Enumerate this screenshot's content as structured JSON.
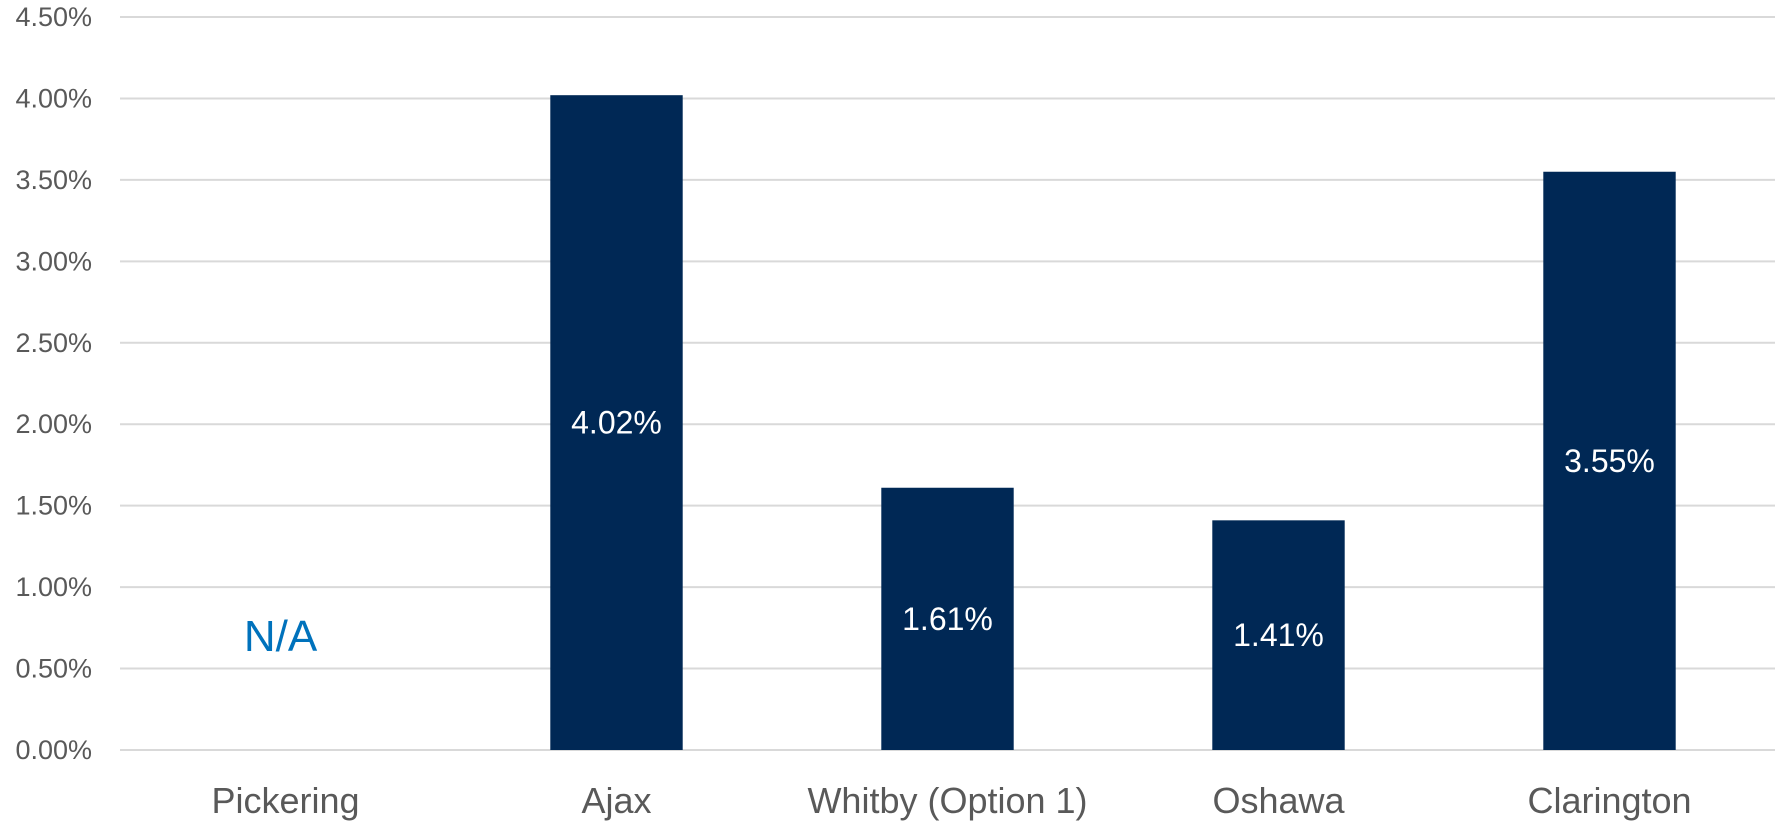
{
  "chart_data": {
    "type": "bar",
    "categories": [
      "Pickering",
      "Ajax",
      "Whitby (Option 1)",
      "Oshawa",
      "Clarington"
    ],
    "values": [
      null,
      4.02,
      1.61,
      1.41,
      3.55
    ],
    "data_labels": [
      "",
      "4.02%",
      "1.61%",
      "1.41%",
      "3.55%"
    ],
    "missing_labels": [
      "N/A",
      "",
      "",
      "",
      ""
    ],
    "title": "",
    "xlabel": "",
    "ylabel": "",
    "ylim": [
      0,
      4.5
    ],
    "y_ticks": [
      0,
      0.5,
      1.0,
      1.5,
      2.0,
      2.5,
      3.0,
      3.5,
      4.0,
      4.5
    ],
    "y_tick_labels": [
      "0.00%",
      "0.50%",
      "1.00%",
      "1.50%",
      "2.00%",
      "2.50%",
      "3.00%",
      "3.50%",
      "4.00%",
      "4.50%"
    ],
    "grid": true,
    "legend": "none",
    "colors": {
      "bar": "#002855",
      "na_text": "#0072bc",
      "gridline": "#d9d9d9",
      "axis_text": "#595959",
      "data_label": "#ffffff"
    }
  }
}
